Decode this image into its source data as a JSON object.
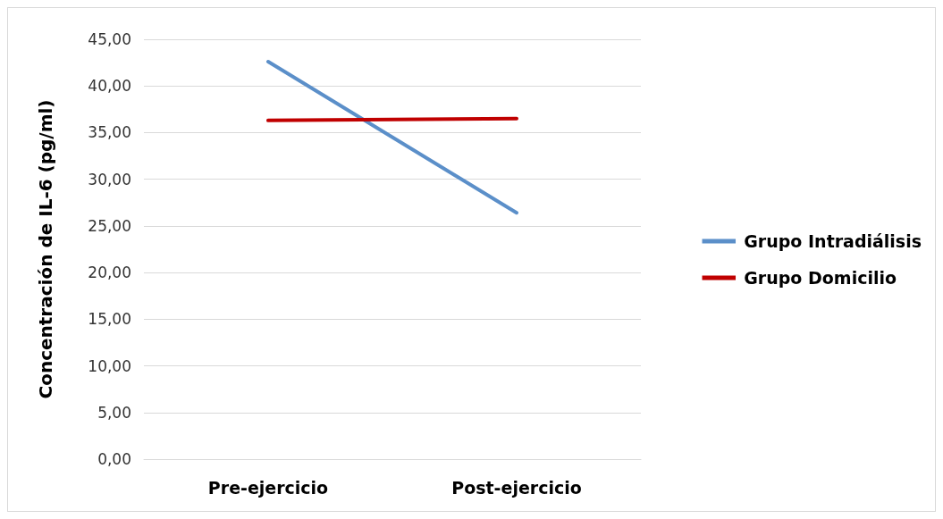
{
  "chart_data": {
    "type": "line",
    "ylabel": "Concentración de IL-6 (pg/ml)",
    "categories": [
      "Pre-ejercicio",
      "Post-ejercicio"
    ],
    "series": [
      {
        "name": "Grupo Intradiálisis",
        "color": "#5b8fc9",
        "values": [
          42.6,
          26.4
        ]
      },
      {
        "name": "Grupo Domicilio",
        "color": "#c00000",
        "values": [
          36.3,
          36.5
        ]
      }
    ],
    "ylim": [
      0,
      45
    ],
    "yticks": [
      {
        "value": 0,
        "label": "0,00"
      },
      {
        "value": 5,
        "label": "5,00"
      },
      {
        "value": 10,
        "label": "10,00"
      },
      {
        "value": 15,
        "label": "15,00"
      },
      {
        "value": 20,
        "label": "20,00"
      },
      {
        "value": 25,
        "label": "25,00"
      },
      {
        "value": 30,
        "label": "30,00"
      },
      {
        "value": 35,
        "label": "35,00"
      },
      {
        "value": 40,
        "label": "40,00"
      },
      {
        "value": 45,
        "label": "45,00"
      }
    ],
    "grid": "y",
    "legend": "right",
    "marker": "none",
    "line_style": "solid"
  }
}
